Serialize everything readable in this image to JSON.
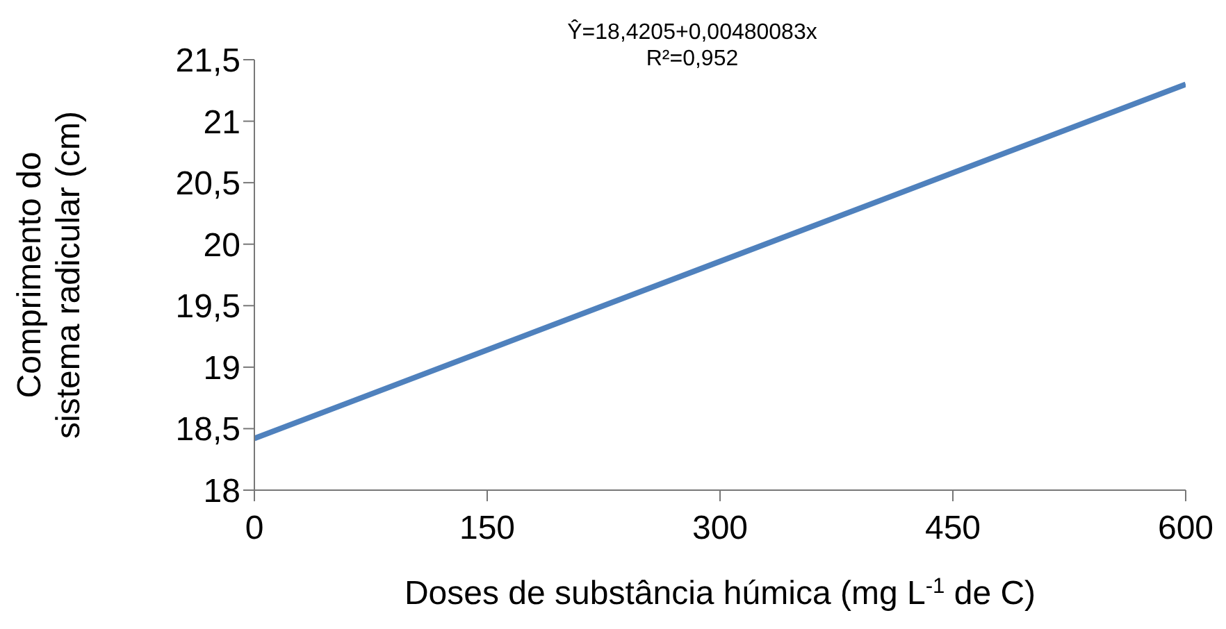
{
  "chart_data": {
    "type": "line",
    "xlabel": "Doses de substância húmica (mg L$^{-1}$ de C)",
    "ylabel": "Comprimento do sistema radicular (cm)",
    "annotations": [
      "Ŷ=18,4205+0,00480083x",
      "R²=0,952"
    ],
    "x": [
      0,
      600
    ],
    "series": [
      {
        "color": "#4f81bd",
        "values": [
          18.42,
          21.3
        ]
      }
    ],
    "xlim": [
      0,
      600
    ],
    "xticks": [
      0,
      150,
      300,
      450,
      600
    ],
    "ylim": [
      18,
      21.5
    ],
    "yticks": [
      18,
      {
        "value": 18.5,
        "label": "18,5"
      },
      19,
      {
        "value": 19.5,
        "label": "19,5"
      },
      20,
      {
        "value": 20.5,
        "label": "20,5"
      },
      21,
      {
        "value": 21.5,
        "label": "21,5"
      }
    ],
    "grid": false,
    "marker": "none",
    "line_style": "solid"
  }
}
